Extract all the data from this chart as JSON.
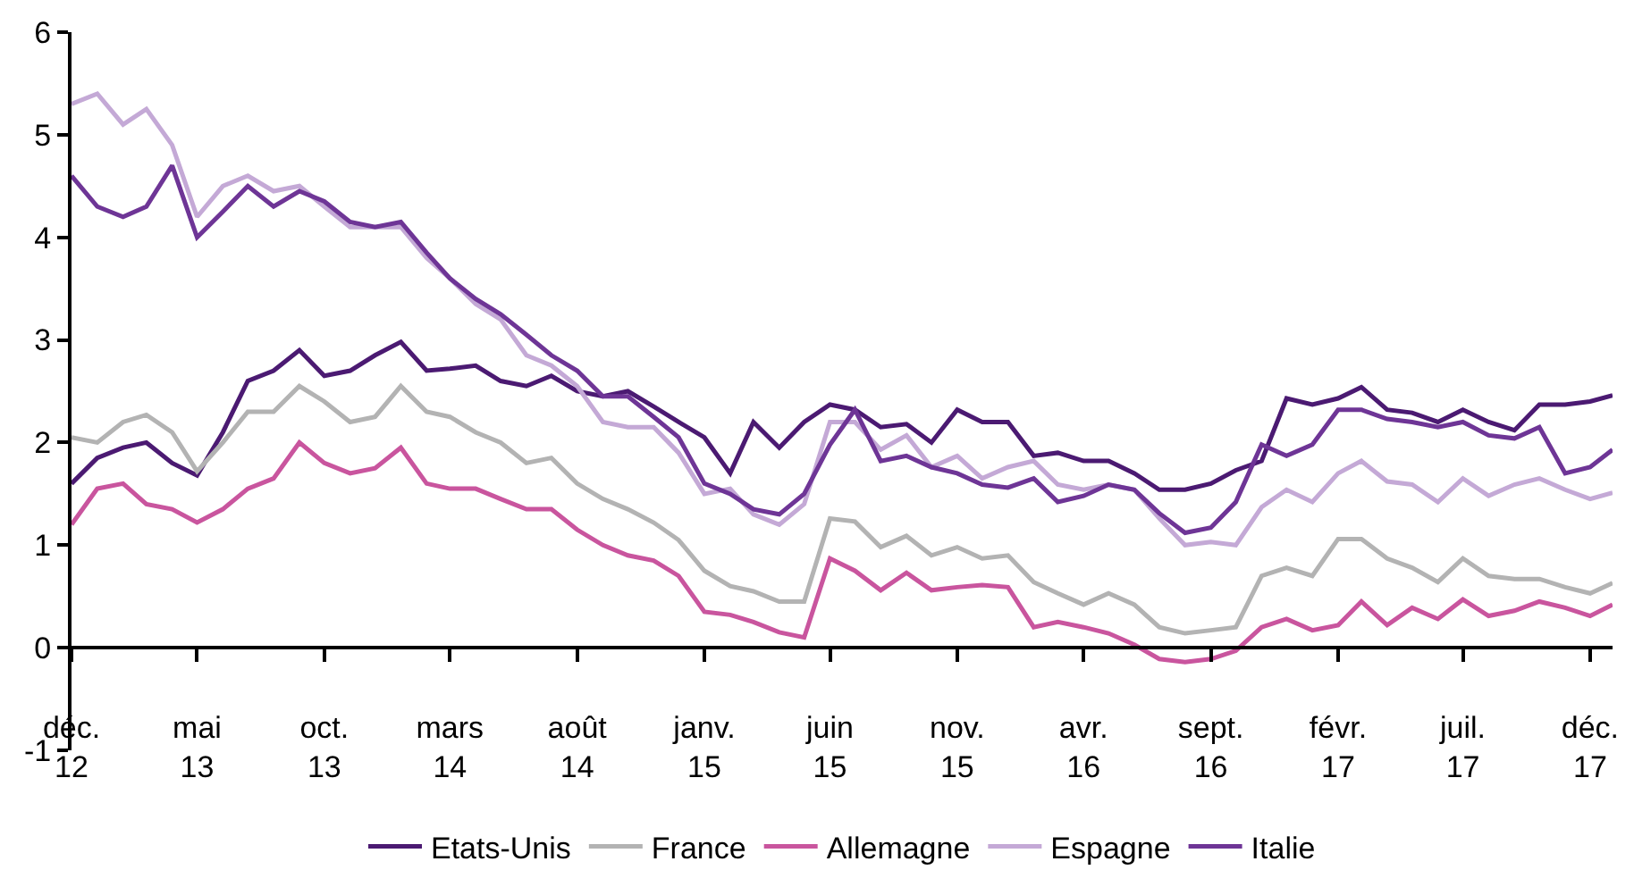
{
  "chart_data": {
    "type": "line",
    "x": [
      "2012-12",
      "2013-01",
      "2013-02",
      "2013-03",
      "2013-04",
      "2013-05",
      "2013-06",
      "2013-07",
      "2013-08",
      "2013-09",
      "2013-10",
      "2013-11",
      "2013-12",
      "2014-01",
      "2014-02",
      "2014-03",
      "2014-04",
      "2014-05",
      "2014-06",
      "2014-07",
      "2014-08",
      "2014-09",
      "2014-10",
      "2014-11",
      "2014-12",
      "2015-01",
      "2015-02",
      "2015-03",
      "2015-04",
      "2015-05",
      "2015-06",
      "2015-07",
      "2015-08",
      "2015-09",
      "2015-10",
      "2015-11",
      "2015-12",
      "2016-01",
      "2016-02",
      "2016-03",
      "2016-04",
      "2016-05",
      "2016-06",
      "2016-07",
      "2016-08",
      "2016-09",
      "2016-10",
      "2016-11",
      "2016-12",
      "2017-01",
      "2017-02",
      "2017-03",
      "2017-04",
      "2017-05",
      "2017-06",
      "2017-07",
      "2017-08",
      "2017-09",
      "2017-10",
      "2017-11",
      "2017-12",
      "2017-12-28"
    ],
    "series": [
      {
        "name": "Etats-Unis",
        "color": "#4b1a72",
        "values": [
          1.6,
          1.85,
          1.95,
          2.0,
          1.8,
          1.68,
          2.1,
          2.6,
          2.7,
          2.9,
          2.65,
          2.7,
          2.85,
          2.98,
          2.7,
          2.72,
          2.75,
          2.6,
          2.55,
          2.65,
          2.5,
          2.45,
          2.5,
          2.35,
          2.2,
          2.05,
          1.7,
          2.2,
          1.95,
          2.2,
          2.37,
          2.32,
          2.15,
          2.18,
          2.0,
          2.32,
          2.2,
          2.2,
          1.87,
          1.9,
          1.82,
          1.82,
          1.7,
          1.54,
          1.54,
          1.6,
          1.73,
          1.82,
          2.43,
          2.37,
          2.43,
          2.54,
          2.32,
          2.29,
          2.2,
          2.32,
          2.2,
          2.12,
          2.37,
          2.37,
          2.4,
          2.46
        ]
      },
      {
        "name": "France",
        "color": "#b3b3b3",
        "values": [
          2.05,
          2.0,
          2.2,
          2.27,
          2.1,
          1.72,
          2.0,
          2.3,
          2.3,
          2.55,
          2.4,
          2.2,
          2.25,
          2.55,
          2.3,
          2.25,
          2.1,
          2.0,
          1.8,
          1.85,
          1.6,
          1.45,
          1.35,
          1.22,
          1.05,
          0.75,
          0.6,
          0.55,
          0.45,
          0.45,
          1.26,
          1.23,
          0.98,
          1.09,
          0.9,
          0.98,
          0.87,
          0.9,
          0.64,
          0.53,
          0.42,
          0.53,
          0.42,
          0.2,
          0.14,
          0.17,
          0.2,
          0.7,
          0.78,
          0.7,
          1.06,
          1.06,
          0.87,
          0.78,
          0.64,
          0.87,
          0.7,
          0.67,
          0.67,
          0.59,
          0.53,
          0.63
        ]
      },
      {
        "name": "Allemagne",
        "color": "#c9559e",
        "values": [
          1.2,
          1.55,
          1.6,
          1.4,
          1.35,
          1.22,
          1.35,
          1.55,
          1.65,
          2.0,
          1.8,
          1.7,
          1.75,
          1.95,
          1.6,
          1.55,
          1.55,
          1.45,
          1.35,
          1.35,
          1.15,
          1.0,
          0.9,
          0.85,
          0.7,
          0.35,
          0.32,
          0.25,
          0.15,
          0.1,
          0.87,
          0.75,
          0.56,
          0.73,
          0.56,
          0.59,
          0.61,
          0.59,
          0.2,
          0.25,
          0.2,
          0.14,
          0.03,
          -0.11,
          -0.14,
          -0.11,
          -0.03,
          0.2,
          0.28,
          0.17,
          0.22,
          0.45,
          0.22,
          0.39,
          0.28,
          0.47,
          0.31,
          0.36,
          0.45,
          0.39,
          0.31,
          0.42
        ]
      },
      {
        "name": "Espagne",
        "color": "#c4a9d6",
        "values": [
          5.3,
          5.4,
          5.1,
          5.25,
          4.9,
          4.2,
          4.5,
          4.6,
          4.45,
          4.5,
          4.3,
          4.1,
          4.1,
          4.1,
          3.8,
          3.6,
          3.35,
          3.2,
          2.85,
          2.75,
          2.55,
          2.2,
          2.15,
          2.15,
          1.9,
          1.5,
          1.55,
          1.3,
          1.2,
          1.4,
          2.2,
          2.2,
          1.93,
          2.07,
          1.76,
          1.87,
          1.65,
          1.76,
          1.82,
          1.59,
          1.54,
          1.59,
          1.54,
          1.26,
          1.0,
          1.03,
          1.0,
          1.37,
          1.54,
          1.42,
          1.7,
          1.82,
          1.62,
          1.59,
          1.42,
          1.65,
          1.48,
          1.59,
          1.65,
          1.54,
          1.45,
          1.51
        ]
      },
      {
        "name": "Italie",
        "color": "#6e3596",
        "values": [
          4.6,
          4.3,
          4.2,
          4.3,
          4.7,
          4.0,
          4.25,
          4.5,
          4.3,
          4.45,
          4.35,
          4.15,
          4.1,
          4.15,
          3.85,
          3.6,
          3.4,
          3.25,
          3.05,
          2.85,
          2.7,
          2.45,
          2.45,
          2.25,
          2.05,
          1.6,
          1.5,
          1.35,
          1.3,
          1.5,
          1.98,
          2.32,
          1.82,
          1.87,
          1.76,
          1.7,
          1.59,
          1.56,
          1.65,
          1.42,
          1.48,
          1.59,
          1.54,
          1.31,
          1.12,
          1.17,
          1.42,
          1.98,
          1.87,
          1.98,
          2.32,
          2.32,
          2.23,
          2.2,
          2.15,
          2.2,
          2.07,
          2.04,
          2.15,
          1.7,
          1.76,
          1.93
        ]
      }
    ],
    "xlim": [
      "2012-12-01",
      "2017-12-28"
    ],
    "xticks": [
      {
        "value": "2012-12",
        "label": "déc.\n12"
      },
      {
        "value": "2013-05",
        "label": "mai\n13"
      },
      {
        "value": "2013-10",
        "label": "oct.\n13"
      },
      {
        "value": "2014-03",
        "label": "mars\n14"
      },
      {
        "value": "2014-08",
        "label": "août\n14"
      },
      {
        "value": "2015-01",
        "label": "janv.\n15"
      },
      {
        "value": "2015-06",
        "label": "juin\n15"
      },
      {
        "value": "2015-11",
        "label": "nov.\n15"
      },
      {
        "value": "2016-04",
        "label": "avr.\n16"
      },
      {
        "value": "2016-09",
        "label": "sept.\n16"
      },
      {
        "value": "2017-02",
        "label": "févr.\n17"
      },
      {
        "value": "2017-07",
        "label": "juil.\n17"
      },
      {
        "value": "2017-12",
        "label": "déc.\n17"
      }
    ],
    "ylim": [
      -1,
      6
    ],
    "yticks": [
      -1,
      0,
      1,
      2,
      3,
      4,
      5,
      6
    ],
    "legend": "bottom",
    "marker": "none",
    "line_style": "solid"
  }
}
